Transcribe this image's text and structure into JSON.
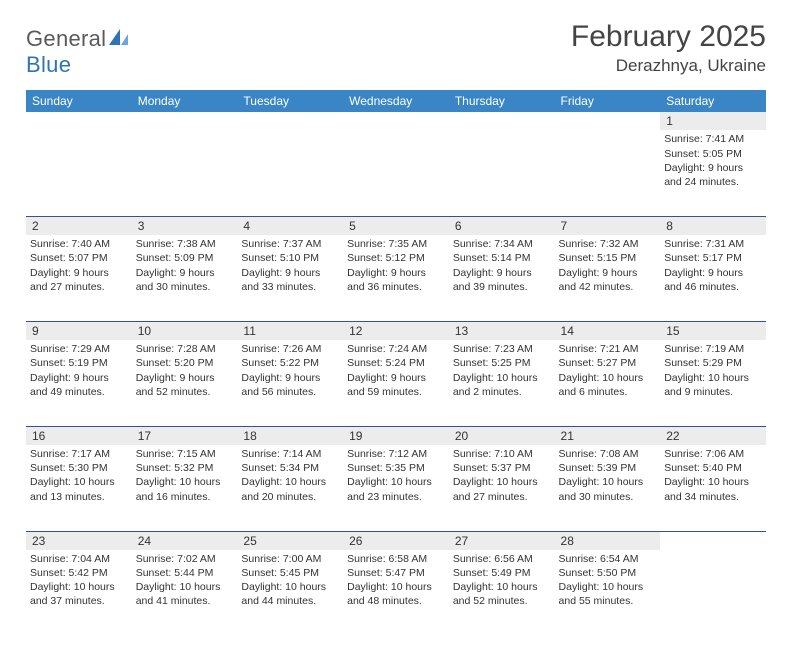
{
  "brand": {
    "word1": "General",
    "word2": "Blue"
  },
  "title": "February 2025",
  "location": "Derazhnya, Ukraine",
  "colors": {
    "header_bg": "#3a85c6",
    "week_border": "#2f5597",
    "daynum_bg": "#ececec",
    "brand_gray": "#5a5a5a",
    "brand_blue": "#2f75b5"
  },
  "weekdays": [
    "Sunday",
    "Monday",
    "Tuesday",
    "Wednesday",
    "Thursday",
    "Friday",
    "Saturday"
  ],
  "weeks": [
    [
      null,
      null,
      null,
      null,
      null,
      null,
      {
        "n": "1",
        "sr": "Sunrise: 7:41 AM",
        "ss": "Sunset: 5:05 PM",
        "dl1": "Daylight: 9 hours",
        "dl2": "and 24 minutes."
      }
    ],
    [
      {
        "n": "2",
        "sr": "Sunrise: 7:40 AM",
        "ss": "Sunset: 5:07 PM",
        "dl1": "Daylight: 9 hours",
        "dl2": "and 27 minutes."
      },
      {
        "n": "3",
        "sr": "Sunrise: 7:38 AM",
        "ss": "Sunset: 5:09 PM",
        "dl1": "Daylight: 9 hours",
        "dl2": "and 30 minutes."
      },
      {
        "n": "4",
        "sr": "Sunrise: 7:37 AM",
        "ss": "Sunset: 5:10 PM",
        "dl1": "Daylight: 9 hours",
        "dl2": "and 33 minutes."
      },
      {
        "n": "5",
        "sr": "Sunrise: 7:35 AM",
        "ss": "Sunset: 5:12 PM",
        "dl1": "Daylight: 9 hours",
        "dl2": "and 36 minutes."
      },
      {
        "n": "6",
        "sr": "Sunrise: 7:34 AM",
        "ss": "Sunset: 5:14 PM",
        "dl1": "Daylight: 9 hours",
        "dl2": "and 39 minutes."
      },
      {
        "n": "7",
        "sr": "Sunrise: 7:32 AM",
        "ss": "Sunset: 5:15 PM",
        "dl1": "Daylight: 9 hours",
        "dl2": "and 42 minutes."
      },
      {
        "n": "8",
        "sr": "Sunrise: 7:31 AM",
        "ss": "Sunset: 5:17 PM",
        "dl1": "Daylight: 9 hours",
        "dl2": "and 46 minutes."
      }
    ],
    [
      {
        "n": "9",
        "sr": "Sunrise: 7:29 AM",
        "ss": "Sunset: 5:19 PM",
        "dl1": "Daylight: 9 hours",
        "dl2": "and 49 minutes."
      },
      {
        "n": "10",
        "sr": "Sunrise: 7:28 AM",
        "ss": "Sunset: 5:20 PM",
        "dl1": "Daylight: 9 hours",
        "dl2": "and 52 minutes."
      },
      {
        "n": "11",
        "sr": "Sunrise: 7:26 AM",
        "ss": "Sunset: 5:22 PM",
        "dl1": "Daylight: 9 hours",
        "dl2": "and 56 minutes."
      },
      {
        "n": "12",
        "sr": "Sunrise: 7:24 AM",
        "ss": "Sunset: 5:24 PM",
        "dl1": "Daylight: 9 hours",
        "dl2": "and 59 minutes."
      },
      {
        "n": "13",
        "sr": "Sunrise: 7:23 AM",
        "ss": "Sunset: 5:25 PM",
        "dl1": "Daylight: 10 hours",
        "dl2": "and 2 minutes."
      },
      {
        "n": "14",
        "sr": "Sunrise: 7:21 AM",
        "ss": "Sunset: 5:27 PM",
        "dl1": "Daylight: 10 hours",
        "dl2": "and 6 minutes."
      },
      {
        "n": "15",
        "sr": "Sunrise: 7:19 AM",
        "ss": "Sunset: 5:29 PM",
        "dl1": "Daylight: 10 hours",
        "dl2": "and 9 minutes."
      }
    ],
    [
      {
        "n": "16",
        "sr": "Sunrise: 7:17 AM",
        "ss": "Sunset: 5:30 PM",
        "dl1": "Daylight: 10 hours",
        "dl2": "and 13 minutes."
      },
      {
        "n": "17",
        "sr": "Sunrise: 7:15 AM",
        "ss": "Sunset: 5:32 PM",
        "dl1": "Daylight: 10 hours",
        "dl2": "and 16 minutes."
      },
      {
        "n": "18",
        "sr": "Sunrise: 7:14 AM",
        "ss": "Sunset: 5:34 PM",
        "dl1": "Daylight: 10 hours",
        "dl2": "and 20 minutes."
      },
      {
        "n": "19",
        "sr": "Sunrise: 7:12 AM",
        "ss": "Sunset: 5:35 PM",
        "dl1": "Daylight: 10 hours",
        "dl2": "and 23 minutes."
      },
      {
        "n": "20",
        "sr": "Sunrise: 7:10 AM",
        "ss": "Sunset: 5:37 PM",
        "dl1": "Daylight: 10 hours",
        "dl2": "and 27 minutes."
      },
      {
        "n": "21",
        "sr": "Sunrise: 7:08 AM",
        "ss": "Sunset: 5:39 PM",
        "dl1": "Daylight: 10 hours",
        "dl2": "and 30 minutes."
      },
      {
        "n": "22",
        "sr": "Sunrise: 7:06 AM",
        "ss": "Sunset: 5:40 PM",
        "dl1": "Daylight: 10 hours",
        "dl2": "and 34 minutes."
      }
    ],
    [
      {
        "n": "23",
        "sr": "Sunrise: 7:04 AM",
        "ss": "Sunset: 5:42 PM",
        "dl1": "Daylight: 10 hours",
        "dl2": "and 37 minutes."
      },
      {
        "n": "24",
        "sr": "Sunrise: 7:02 AM",
        "ss": "Sunset: 5:44 PM",
        "dl1": "Daylight: 10 hours",
        "dl2": "and 41 minutes."
      },
      {
        "n": "25",
        "sr": "Sunrise: 7:00 AM",
        "ss": "Sunset: 5:45 PM",
        "dl1": "Daylight: 10 hours",
        "dl2": "and 44 minutes."
      },
      {
        "n": "26",
        "sr": "Sunrise: 6:58 AM",
        "ss": "Sunset: 5:47 PM",
        "dl1": "Daylight: 10 hours",
        "dl2": "and 48 minutes."
      },
      {
        "n": "27",
        "sr": "Sunrise: 6:56 AM",
        "ss": "Sunset: 5:49 PM",
        "dl1": "Daylight: 10 hours",
        "dl2": "and 52 minutes."
      },
      {
        "n": "28",
        "sr": "Sunrise: 6:54 AM",
        "ss": "Sunset: 5:50 PM",
        "dl1": "Daylight: 10 hours",
        "dl2": "and 55 minutes."
      },
      null
    ]
  ]
}
